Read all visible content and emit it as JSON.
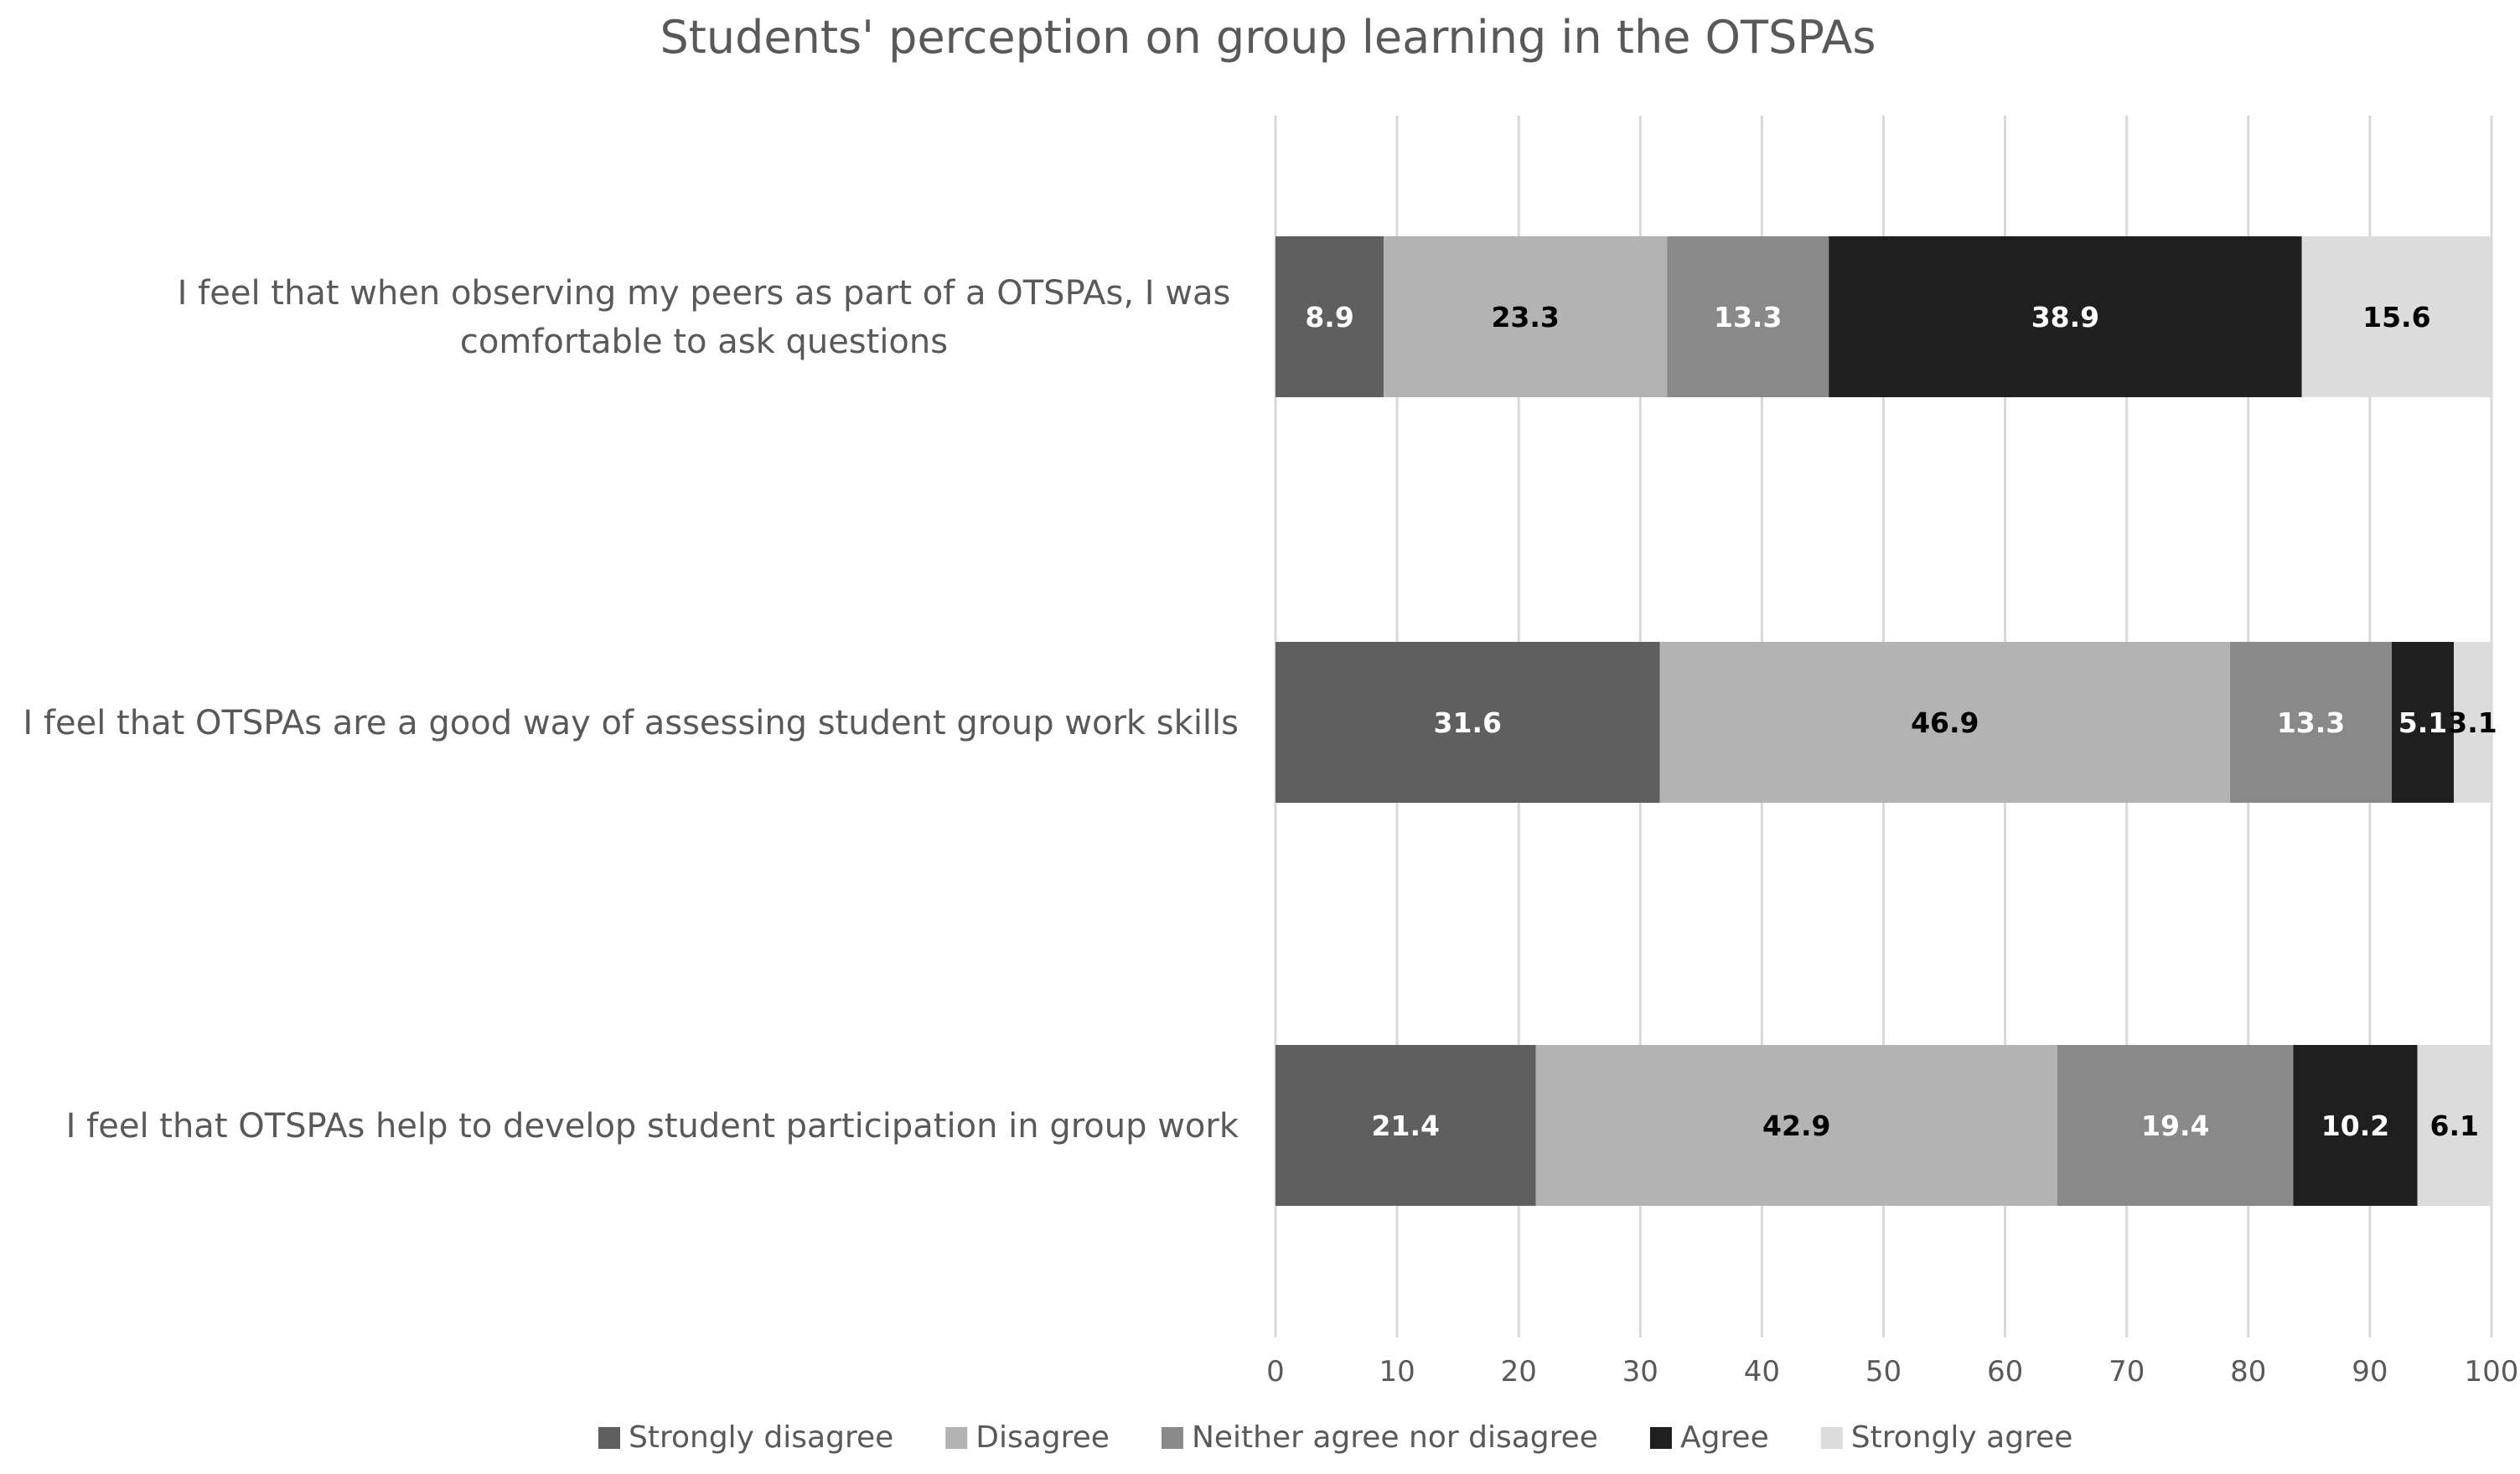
{
  "chart_data": {
    "type": "bar",
    "orientation": "horizontal",
    "stacked": true,
    "title": "Students' perception on group learning in the OTSPAs",
    "xlabel": "",
    "ylabel": "",
    "xlim": [
      0,
      100
    ],
    "x_ticks": [
      "0",
      "10",
      "20",
      "30",
      "40",
      "50",
      "60",
      "70",
      "80",
      "90",
      "100"
    ],
    "grid": true,
    "legend_position": "bottom",
    "categories": [
      [
        "I feel that when observing my peers as part of a OTSPAs, I was",
        "comfortable to ask questions"
      ],
      [
        "I feel that OTSPAs are a good way of assessing student group work skills"
      ],
      [
        "I feel that OTSPAs help to develop student participation in group work"
      ]
    ],
    "series": [
      {
        "name": "Strongly disagree",
        "color": "#5f5f5f",
        "label_color": "#ffffff",
        "values": [
          8.9,
          31.6,
          21.4
        ],
        "labels": [
          "8.9",
          "31.6",
          "21.4"
        ]
      },
      {
        "name": "Disagree",
        "color": "#b3b3b3",
        "label_color": "#000000",
        "values": [
          23.3,
          46.9,
          42.9
        ],
        "labels": [
          "23.3",
          "46.9",
          "42.9"
        ]
      },
      {
        "name": "Neither agree nor disagree",
        "color": "#898989",
        "label_color": "#ffffff",
        "values": [
          13.3,
          13.3,
          19.4
        ],
        "labels": [
          "13.3",
          "13.3",
          "19.4"
        ]
      },
      {
        "name": "Agree",
        "color": "#1f1f1f",
        "label_color": "#ffffff",
        "values": [
          38.9,
          5.1,
          10.2
        ],
        "labels": [
          "38.9",
          "5.1",
          "10.2"
        ]
      },
      {
        "name": "Strongly agree",
        "color": "#dcdcdc",
        "label_color": "#000000",
        "values": [
          15.6,
          3.1,
          6.1
        ],
        "labels": [
          "15.6",
          "3.1",
          "6.1"
        ]
      }
    ]
  }
}
